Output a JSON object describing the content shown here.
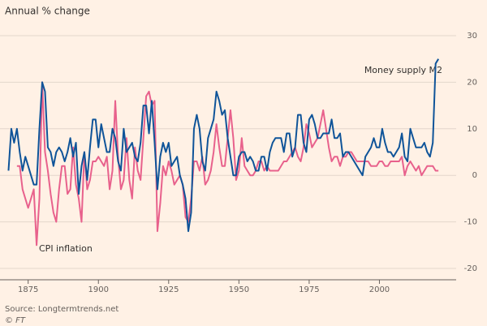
{
  "chart_data": {
    "type": "line",
    "title": "Annual % change",
    "source": "Source: Longtermtrends.net",
    "credit": "© FT",
    "annotations": [
      "Money supply M2",
      "CPI inflation"
    ],
    "x": [
      1868,
      1869,
      1870,
      1871,
      1872,
      1873,
      1874,
      1875,
      1876,
      1877,
      1878,
      1879,
      1880,
      1881,
      1882,
      1883,
      1884,
      1885,
      1886,
      1887,
      1888,
      1889,
      1890,
      1891,
      1892,
      1893,
      1894,
      1895,
      1896,
      1897,
      1898,
      1899,
      1900,
      1901,
      1902,
      1903,
      1904,
      1905,
      1906,
      1907,
      1908,
      1909,
      1910,
      1911,
      1912,
      1913,
      1914,
      1915,
      1916,
      1917,
      1918,
      1919,
      1920,
      1921,
      1922,
      1923,
      1924,
      1925,
      1926,
      1927,
      1928,
      1929,
      1930,
      1931,
      1932,
      1933,
      1934,
      1935,
      1936,
      1937,
      1938,
      1939,
      1940,
      1941,
      1942,
      1943,
      1944,
      1945,
      1946,
      1947,
      1948,
      1949,
      1950,
      1951,
      1952,
      1953,
      1954,
      1955,
      1956,
      1957,
      1958,
      1959,
      1960,
      1961,
      1962,
      1963,
      1964,
      1965,
      1966,
      1967,
      1968,
      1969,
      1970,
      1971,
      1972,
      1973,
      1974,
      1975,
      1976,
      1977,
      1978,
      1979,
      1980,
      1981,
      1982,
      1983,
      1984,
      1985,
      1986,
      1987,
      1988,
      1989,
      1990,
      1991,
      1992,
      1993,
      1994,
      1995,
      1996,
      1997,
      1998,
      1999,
      2000,
      2001,
      2002,
      2003,
      2004,
      2005,
      2006,
      2007,
      2008,
      2009,
      2010,
      2011,
      2012,
      2013,
      2014,
      2015,
      2016,
      2017,
      2018,
      2019,
      2020,
      2021
    ],
    "series": [
      {
        "name": "Money supply M2",
        "color": "#0f5499",
        "values": [
          1,
          10,
          7,
          10,
          5,
          1,
          4,
          2,
          0,
          -2,
          -2,
          10,
          20,
          18,
          6,
          5,
          2,
          5,
          6,
          5,
          3,
          5,
          8,
          4,
          7,
          -4,
          2,
          5,
          -1,
          6,
          12,
          12,
          6,
          11,
          8,
          5,
          5,
          10,
          8,
          3,
          1,
          10,
          5,
          6,
          7,
          4,
          3,
          7,
          15,
          15,
          9,
          16,
          7,
          -3,
          4,
          7,
          5,
          7,
          2,
          3,
          4,
          0,
          -2,
          -5,
          -12,
          -8,
          10,
          13,
          10,
          3,
          1,
          8,
          10,
          12,
          18,
          16,
          13,
          14,
          8,
          4,
          0,
          0,
          4,
          5,
          5,
          3,
          4,
          3,
          1,
          1,
          4,
          4,
          1,
          5,
          7,
          8,
          8,
          8,
          5,
          9,
          9,
          4,
          6,
          13,
          13,
          7,
          5,
          12,
          13,
          11,
          8,
          8,
          9,
          9,
          9,
          12,
          8,
          8,
          9,
          4,
          5,
          5,
          4,
          3,
          2,
          1,
          0,
          4,
          5,
          6,
          8,
          6,
          6,
          10,
          7,
          5,
          5,
          4,
          5,
          6,
          9,
          4,
          3,
          10,
          8,
          6,
          6,
          6,
          7,
          5,
          4,
          7,
          24,
          25
        ]
      },
      {
        "name": "CPI inflation",
        "color": "#e8618c",
        "values": [
          null,
          null,
          null,
          2,
          2,
          -3,
          -5,
          -7,
          -5,
          -3,
          -15,
          -5,
          20,
          5,
          1,
          -4,
          -8,
          -10,
          -3,
          2,
          2,
          -4,
          -3,
          6,
          -2,
          -5,
          -10,
          5,
          -3,
          -1,
          3,
          3,
          4,
          3,
          2,
          4,
          -3,
          1,
          16,
          4,
          -3,
          -1,
          8,
          -1,
          -5,
          6,
          1,
          -1,
          8,
          17,
          18,
          15,
          16,
          -12,
          -6,
          2,
          0,
          3,
          1,
          -2,
          -1,
          0,
          -2,
          -9,
          -10,
          -5,
          3,
          3,
          1,
          4,
          -2,
          -1,
          1,
          5,
          11,
          6,
          2,
          2,
          8,
          14,
          8,
          -1,
          1,
          8,
          2,
          1,
          0,
          0,
          1,
          3,
          3,
          1,
          2,
          1,
          1,
          1,
          1,
          2,
          3,
          3,
          4,
          5,
          6,
          4,
          3,
          6,
          11,
          9,
          6,
          7,
          8,
          11,
          14,
          10,
          6,
          3,
          4,
          4,
          2,
          4,
          4,
          5,
          5,
          4,
          3,
          3,
          3,
          3,
          3,
          2,
          2,
          2,
          3,
          3,
          2,
          2,
          3,
          3,
          3,
          3,
          4,
          0,
          2,
          3,
          2,
          1,
          2,
          0,
          1,
          2,
          2,
          2,
          1,
          1
        ]
      }
    ],
    "xlim": [
      1867,
      2025
    ],
    "xticks": [
      1875,
      1900,
      1925,
      1950,
      1975,
      2000
    ],
    "ylim": [
      -20,
      30
    ],
    "yticks": [
      -20,
      -10,
      0,
      10,
      20,
      30
    ],
    "grid": true
  }
}
